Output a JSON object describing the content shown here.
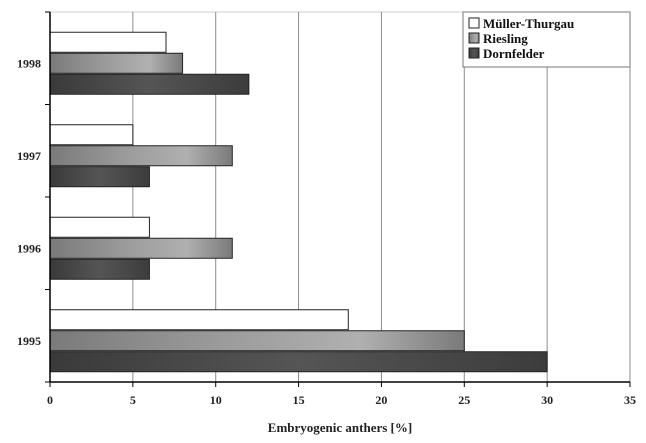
{
  "chart_data": {
    "type": "bar",
    "orientation": "horizontal",
    "categories": [
      "1995",
      "1996",
      "1997",
      "1998"
    ],
    "series": [
      {
        "name": "Müller-Thurgau",
        "values": [
          18,
          6,
          5,
          7
        ],
        "color": "#ffffff"
      },
      {
        "name": "Riesling",
        "values": [
          25,
          11,
          11,
          8
        ],
        "color": "#8a8a8a"
      },
      {
        "name": "Dornfelder",
        "values": [
          30,
          6,
          6,
          12
        ],
        "color": "#444444"
      }
    ],
    "xlabel": "Embryogenic anthers [%]",
    "ylabel": "",
    "xlim": [
      0,
      35
    ],
    "xticks": [
      0,
      5,
      10,
      15,
      20,
      25,
      30,
      35
    ],
    "grid": "vertical",
    "legend": "top-right"
  }
}
